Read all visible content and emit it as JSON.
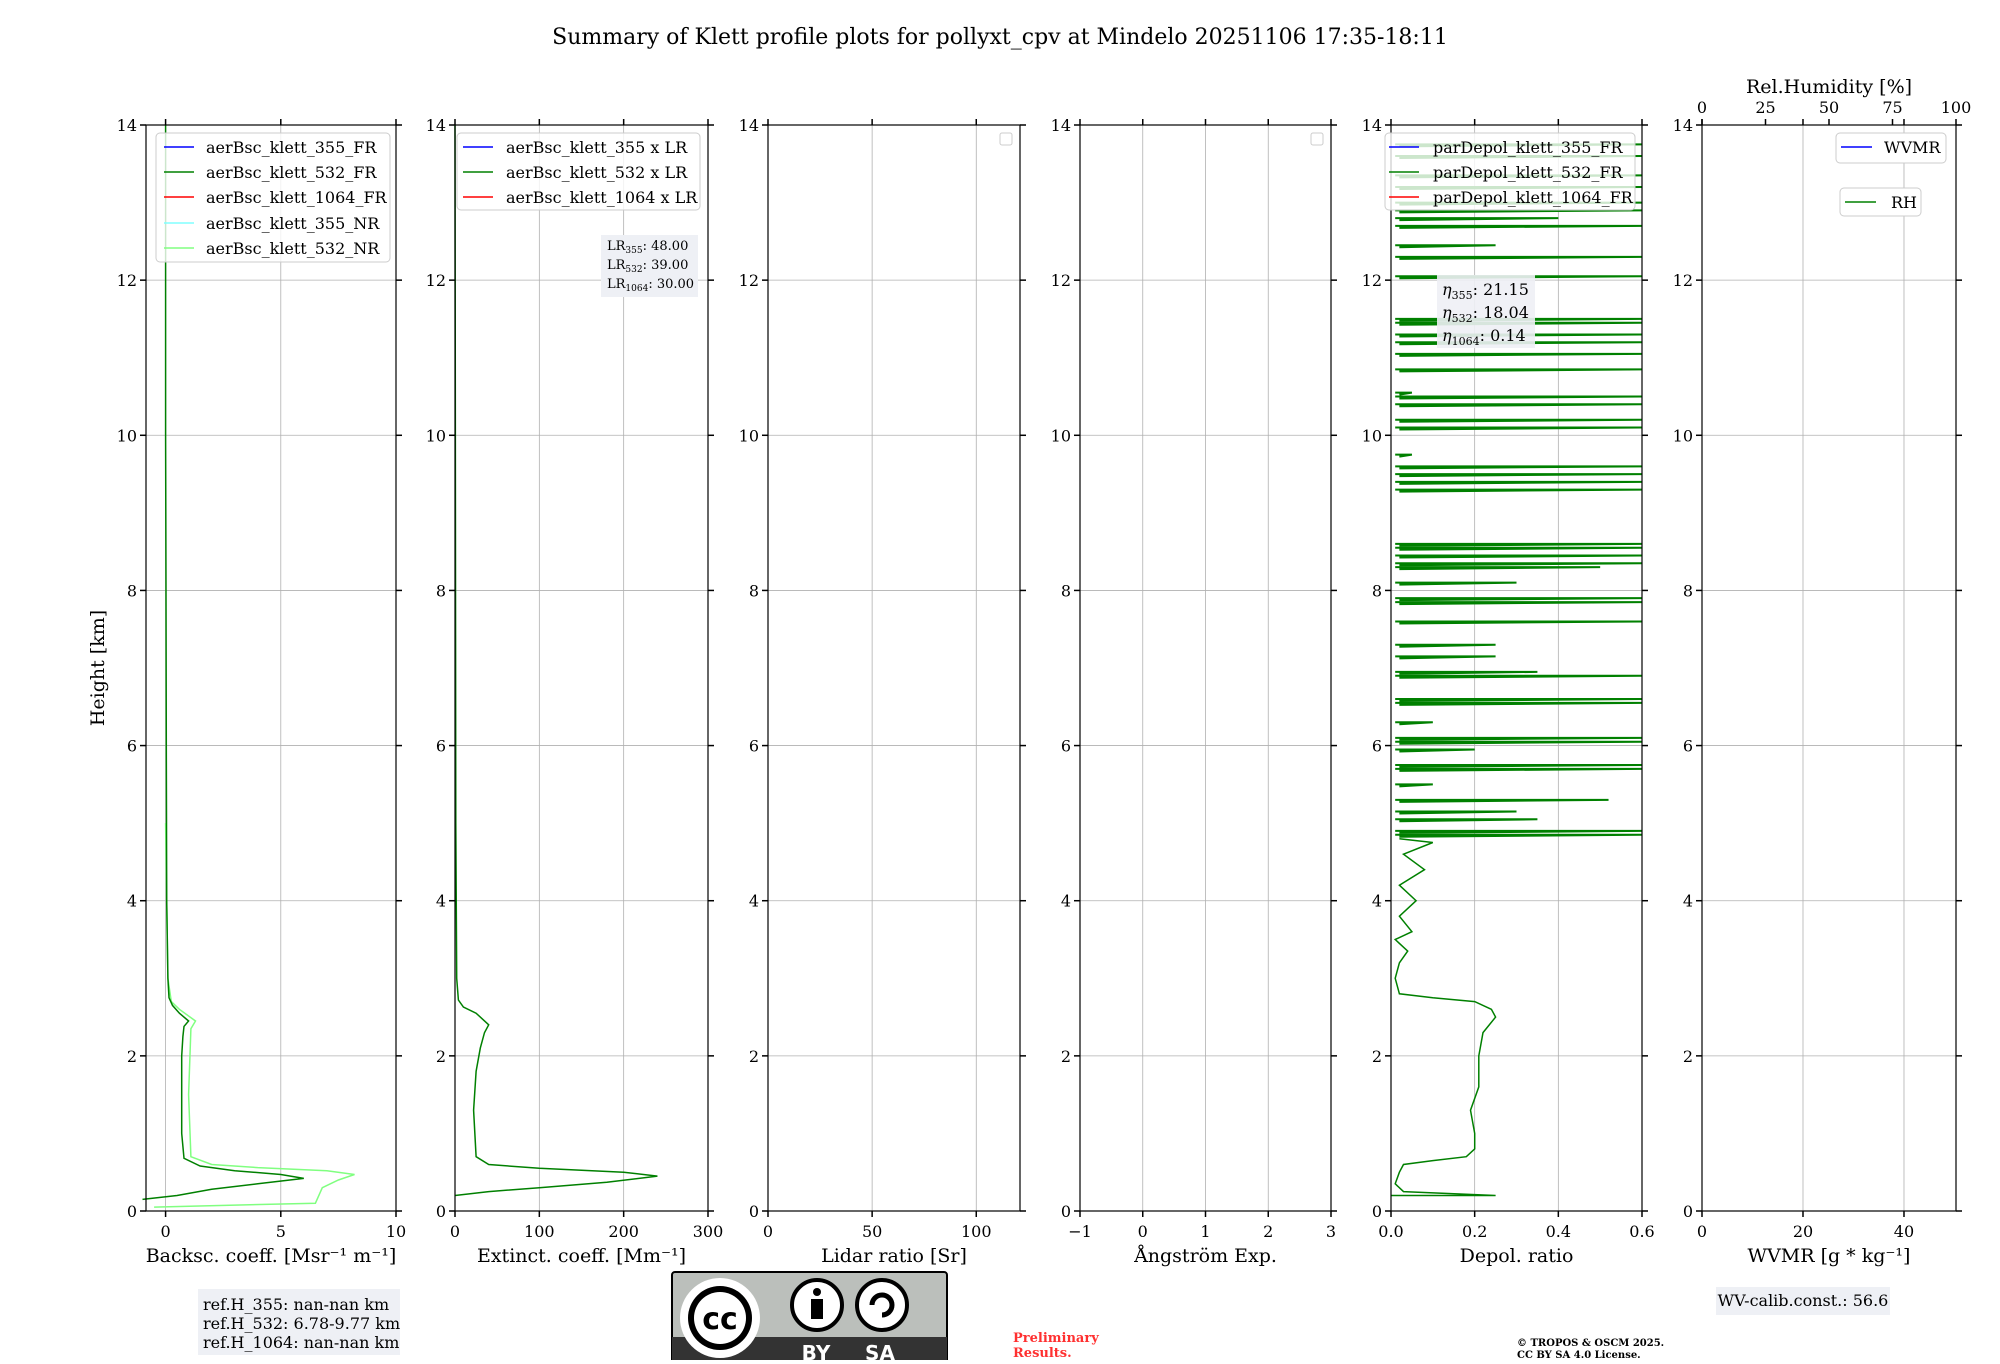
{
  "title": "Summary of Klett profile plots for pollyxt_cpv at Mindelo 20251106 17:35-18:11",
  "ylabel": "Height [km]",
  "yticks": [
    "0",
    "2",
    "4",
    "6",
    "8",
    "10",
    "12",
    "14"
  ],
  "colors": {
    "b355": "#0000ff",
    "b532": "#008000",
    "b1064": "#ff0000",
    "b355nr": "#80ffff",
    "b532nr": "#80ff80",
    "grid": "#b0b0b0"
  },
  "panels": [
    {
      "xlabel": "Backsc. coeff. [Msr⁻¹ m⁻¹]",
      "xlim": [
        -0.85,
        10
      ],
      "xticks": [
        0,
        5,
        10
      ],
      "xticklabels": [
        "0",
        "5",
        "10"
      ],
      "legend": [
        "aerBsc_klett_355_FR",
        "aerBsc_klett_532_FR",
        "aerBsc_klett_1064_FR",
        "aerBsc_klett_355_NR",
        "aerBsc_klett_532_NR"
      ]
    },
    {
      "xlabel": "Extinct. coeff. [Mm⁻¹]",
      "xlim": [
        0,
        300
      ],
      "xticks": [
        0,
        100,
        200,
        300
      ],
      "xticklabels": [
        "0",
        "100",
        "200",
        "300"
      ],
      "legend": [
        "aerBsc_klett_355 x LR",
        "aerBsc_klett_532 x LR",
        "aerBsc_klett_1064 x LR"
      ]
    },
    {
      "xlabel": "Lidar ratio [Sr]",
      "xlim": [
        0,
        121
      ],
      "xticks": [
        0,
        50,
        100
      ],
      "xticklabels": [
        "0",
        "50",
        "100"
      ]
    },
    {
      "xlabel": "Ångström Exp.",
      "xlim": [
        -1,
        3
      ],
      "xticks": [
        -1,
        0,
        1,
        2,
        3
      ],
      "xticklabels": [
        "−1",
        "0",
        "1",
        "2",
        "3"
      ]
    },
    {
      "xlabel": "Depol. ratio",
      "xlim": [
        0,
        0.6
      ],
      "xticks": [
        0,
        0.2,
        0.4,
        0.6
      ],
      "xticklabels": [
        "0.0",
        "0.2",
        "0.4",
        "0.6"
      ],
      "legend": [
        "parDepol_klett_355_FR",
        "parDepol_klett_532_FR",
        "parDepol_klett_1064_FR"
      ]
    },
    {
      "xlabel": "WVMR [g * kg⁻¹]",
      "xlim": [
        0,
        50.3
      ],
      "xticks": [
        0,
        20,
        40
      ],
      "xticklabels": [
        "0",
        "20",
        "40"
      ],
      "legend": [
        "WVMR",
        "RH"
      ],
      "top_label": "Rel.Humidity [%]",
      "top_ticks": [
        0,
        25,
        50,
        75,
        100
      ],
      "top_ticklabels": [
        "0",
        "25",
        "50",
        "75",
        "100"
      ]
    }
  ],
  "lr_box": {
    "rows": [
      {
        "sub": "355",
        "val": ": 48.00"
      },
      {
        "sub": "532",
        "val": ": 39.00"
      },
      {
        "sub": "1064",
        "val": ": 30.00"
      }
    ],
    "prefix": "LR"
  },
  "eta_box": {
    "rows": [
      {
        "sub": "355",
        "val": ": 21.15"
      },
      {
        "sub": "532",
        "val": ": 18.04"
      },
      {
        "sub": "1064",
        "val": ": 0.14"
      }
    ],
    "prefix": "η"
  },
  "ref_box": [
    "ref.H_355: nan-nan km",
    "ref.H_532: 6.78-9.77 km",
    "ref.H_1064: nan-nan km"
  ],
  "wv_calib": "WV-calib.const.: 56.6",
  "preliminary": [
    "Preliminary",
    "Results."
  ],
  "copyright": [
    "© TROPOS & OSCM 2025.",
    "CC BY SA 4.0 License."
  ],
  "cc_logo": {
    "cc": "cc",
    "by": "BY",
    "sa": "SA"
  },
  "chart_data": [
    {
      "type": "line",
      "title": "Backsc. coeff.",
      "ylim": [
        0,
        14
      ],
      "series": [
        {
          "name": "aerBsc_klett_532_FR",
          "x": [
            -1,
            0.5,
            2,
            4,
            6,
            5,
            3,
            1.5,
            0.8,
            0.7,
            0.7,
            0.75,
            0.8,
            1.0,
            0.6,
            0.3,
            0.15,
            0.1,
            0.05,
            0.03,
            0.02,
            0.0,
            0.0
          ],
          "y": [
            0.15,
            0.2,
            0.28,
            0.35,
            0.42,
            0.47,
            0.52,
            0.58,
            0.68,
            1.0,
            2.0,
            2.25,
            2.38,
            2.45,
            2.55,
            2.65,
            2.75,
            3.0,
            4.0,
            6.0,
            8.0,
            10.0,
            14.0
          ]
        },
        {
          "name": "aerBsc_klett_532_NR",
          "x": [
            -0.5,
            6.5,
            6.8,
            7.5,
            8.2,
            7.0,
            4.0,
            2.0,
            1.1,
            1.0,
            1.1,
            1.3,
            0.6,
            0.25,
            0.1,
            0.05,
            0.0
          ],
          "y": [
            0.05,
            0.1,
            0.3,
            0.4,
            0.47,
            0.52,
            0.56,
            0.6,
            0.7,
            1.5,
            2.35,
            2.45,
            2.6,
            2.7,
            3.0,
            4.0,
            5.0
          ]
        }
      ]
    },
    {
      "type": "line",
      "title": "Extinct. coeff.",
      "ylim": [
        0,
        14
      ],
      "series": [
        {
          "name": "aerBsc_klett_532 x LR",
          "x": [
            0,
            40,
            100,
            180,
            240,
            200,
            100,
            40,
            25,
            22,
            25,
            30,
            35,
            40,
            25,
            10,
            4,
            2,
            1,
            0
          ],
          "y": [
            0.2,
            0.25,
            0.3,
            0.37,
            0.45,
            0.5,
            0.55,
            0.6,
            0.7,
            1.3,
            1.8,
            2.1,
            2.3,
            2.4,
            2.55,
            2.63,
            2.72,
            3.0,
            5.0,
            14.0
          ]
        }
      ]
    },
    {
      "type": "line",
      "title": "Depol. ratio",
      "ylim": [
        0,
        14
      ],
      "series": [
        {
          "name": "parDepol_klett_532_FR",
          "x": [
            0,
            0.25,
            0.03,
            0.01,
            0.02,
            0.03,
            0.1,
            0.18,
            0.2,
            0.2,
            0.19,
            0.21,
            0.21,
            0.22,
            0.25,
            0.24,
            0.2,
            0.1,
            0.02,
            0.01,
            0.02,
            0.04,
            0.01,
            0.05,
            0.02,
            0.06,
            0.02,
            0.08,
            0.03,
            0.1,
            0.02
          ],
          "y": [
            0.2,
            0.2,
            0.25,
            0.35,
            0.5,
            0.6,
            0.65,
            0.7,
            0.8,
            1.0,
            1.3,
            1.6,
            2.0,
            2.3,
            2.5,
            2.6,
            2.7,
            2.75,
            2.8,
            3.0,
            3.2,
            3.35,
            3.5,
            3.6,
            3.8,
            4.0,
            4.2,
            4.4,
            4.6,
            4.75,
            4.8
          ]
        },
        {
          "name": "parDepol_klett_532_FR_spikes",
          "heights": [
            4.85,
            4.9,
            5.05,
            5.15,
            5.3,
            5.5,
            5.7,
            5.75,
            5.95,
            6.05,
            6.1,
            6.3,
            6.55,
            6.6,
            6.9,
            6.95,
            7.15,
            7.3,
            7.6,
            7.85,
            7.9,
            8.1,
            8.3,
            8.35,
            8.45,
            8.55,
            8.6,
            9.3,
            9.4,
            9.5,
            9.6,
            9.75,
            10.1,
            10.2,
            10.4,
            10.5,
            10.55,
            10.85,
            11.05,
            11.2,
            11.3,
            11.45,
            11.5,
            12.05,
            12.3,
            12.45,
            12.7,
            12.8,
            12.9,
            13.0,
            13.2,
            13.35,
            13.6,
            13.75
          ],
          "values": [
            0.6,
            0.6,
            0.35,
            0.3,
            0.52,
            0.1,
            0.6,
            0.6,
            0.2,
            0.6,
            0.6,
            0.1,
            0.6,
            0.6,
            0.6,
            0.35,
            0.25,
            0.25,
            0.6,
            0.6,
            0.6,
            0.3,
            0.5,
            0.6,
            0.6,
            0.6,
            0.6,
            0.6,
            0.6,
            0.6,
            0.6,
            0.05,
            0.6,
            0.6,
            0.6,
            0.6,
            0.05,
            0.6,
            0.6,
            0.6,
            0.6,
            0.6,
            0.6,
            0.6,
            0.6,
            0.25,
            0.6,
            0.4,
            0.6,
            0.6,
            0.6,
            0.6,
            0.6,
            0.6
          ]
        }
      ]
    }
  ]
}
